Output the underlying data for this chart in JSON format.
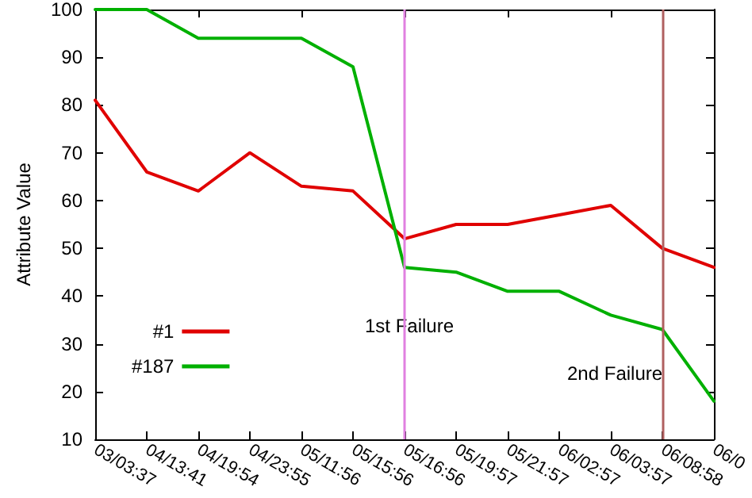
{
  "chart_data": {
    "type": "line",
    "ylabel": "Attribute Value",
    "categories": [
      "03/03:37",
      "04/13:41",
      "04/19:54",
      "04/23:55",
      "05/11:56",
      "05/15:56",
      "05/16:56",
      "05/19:57",
      "05/21:57",
      "06/02:57",
      "06/03:57",
      "06/08:58",
      "06/0"
    ],
    "series": [
      {
        "name": "#1",
        "color": "#e00000",
        "values": [
          81,
          66,
          62,
          70,
          63,
          62,
          52,
          55,
          55,
          57,
          59,
          50,
          46
        ]
      },
      {
        "name": "#187",
        "color": "#00b000",
        "values": [
          100,
          100,
          94,
          94,
          94,
          88,
          46,
          45,
          41,
          41,
          36,
          33,
          18
        ]
      }
    ],
    "ylim": [
      10,
      100
    ],
    "yticks": [
      10,
      20,
      30,
      40,
      50,
      60,
      70,
      80,
      90,
      100
    ],
    "ref_lines": [
      {
        "axis": "x",
        "value": "05/16:56",
        "label": "1st Failure",
        "color": "#e080e0"
      },
      {
        "axis": "x",
        "value": "06/08:58",
        "label": "2nd Failure",
        "color": "#b06060"
      }
    ],
    "legend": "bottom left",
    "grid": false,
    "marker": "none",
    "line_style": "solid"
  }
}
